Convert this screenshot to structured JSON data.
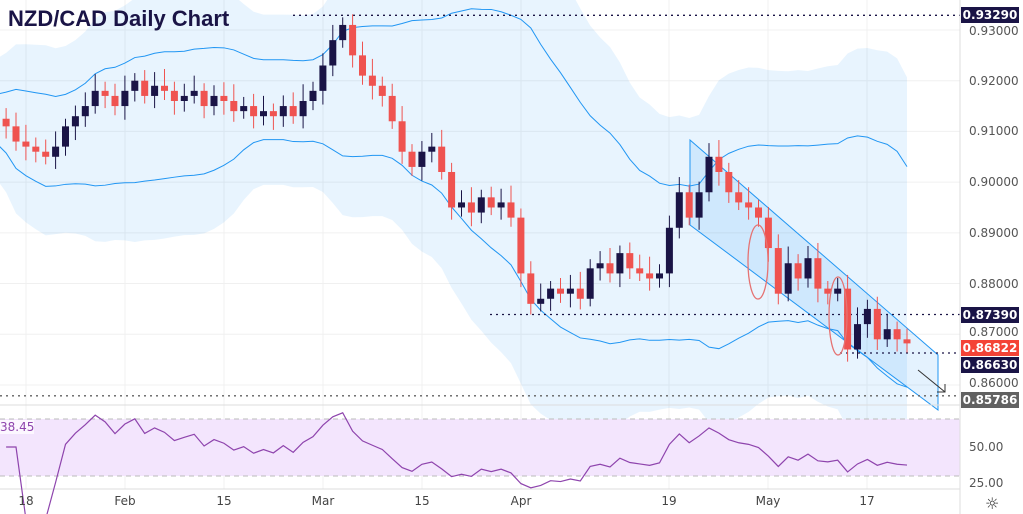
{
  "title": "NZD/CAD Daily Chart",
  "chart_data": {
    "type": "candlestick",
    "title": "NZD/CAD Daily Chart",
    "ylim": [
      0.855,
      0.935
    ],
    "y_ticks": [
      "0.93000",
      "0.92000",
      "0.91000",
      "0.90000",
      "0.89000",
      "0.88000",
      "0.87000",
      "0.86000"
    ],
    "x_ticks": [
      "18",
      "Feb",
      "15",
      "Mar",
      "15",
      "Apr",
      "19",
      "May",
      "17"
    ],
    "closes": [
      0.9125,
      0.911,
      0.908,
      0.907,
      0.906,
      0.905,
      0.907,
      0.911,
      0.913,
      0.915,
      0.918,
      0.917,
      0.915,
      0.918,
      0.92,
      0.917,
      0.919,
      0.918,
      0.916,
      0.917,
      0.918,
      0.915,
      0.917,
      0.916,
      0.914,
      0.915,
      0.913,
      0.914,
      0.913,
      0.915,
      0.913,
      0.916,
      0.918,
      0.923,
      0.928,
      0.931,
      0.925,
      0.921,
      0.919,
      0.917,
      0.912,
      0.906,
      0.903,
      0.906,
      0.907,
      0.902,
      0.895,
      0.896,
      0.894,
      0.897,
      0.895,
      0.896,
      0.893,
      0.882,
      0.876,
      0.877,
      0.879,
      0.878,
      0.879,
      0.877,
      0.883,
      0.884,
      0.882,
      0.886,
      0.883,
      0.882,
      0.881,
      0.882,
      0.891,
      0.898,
      0.893,
      0.898,
      0.905,
      0.902,
      0.898,
      0.896,
      0.895,
      0.893,
      0.887,
      0.878,
      0.884,
      0.881,
      0.885,
      0.879,
      0.878,
      0.879,
      0.867,
      0.872,
      0.875,
      0.869,
      0.871,
      0.869,
      0.8682
    ],
    "levels": [
      {
        "label": "0.93290",
        "value": 0.9329,
        "color": "#1a1446"
      },
      {
        "label": "0.87390",
        "value": 0.8739,
        "color": "#1a1446"
      },
      {
        "label": "0.86822",
        "value": 0.86822,
        "color": "#f44336"
      },
      {
        "label": "0.86630",
        "value": 0.8663,
        "color": "#1a1446"
      },
      {
        "label": "0.85786",
        "value": 0.85786,
        "color": "#616161"
      }
    ],
    "rsi": {
      "current": "38.45",
      "y_ticks": [
        "50.00",
        "25.00"
      ],
      "bounds": [
        30,
        70
      ]
    }
  },
  "colors": {
    "bull": "#1a1446",
    "bear": "#ef5350",
    "band": "#2196f3",
    "rsi": "#8e44ad"
  }
}
